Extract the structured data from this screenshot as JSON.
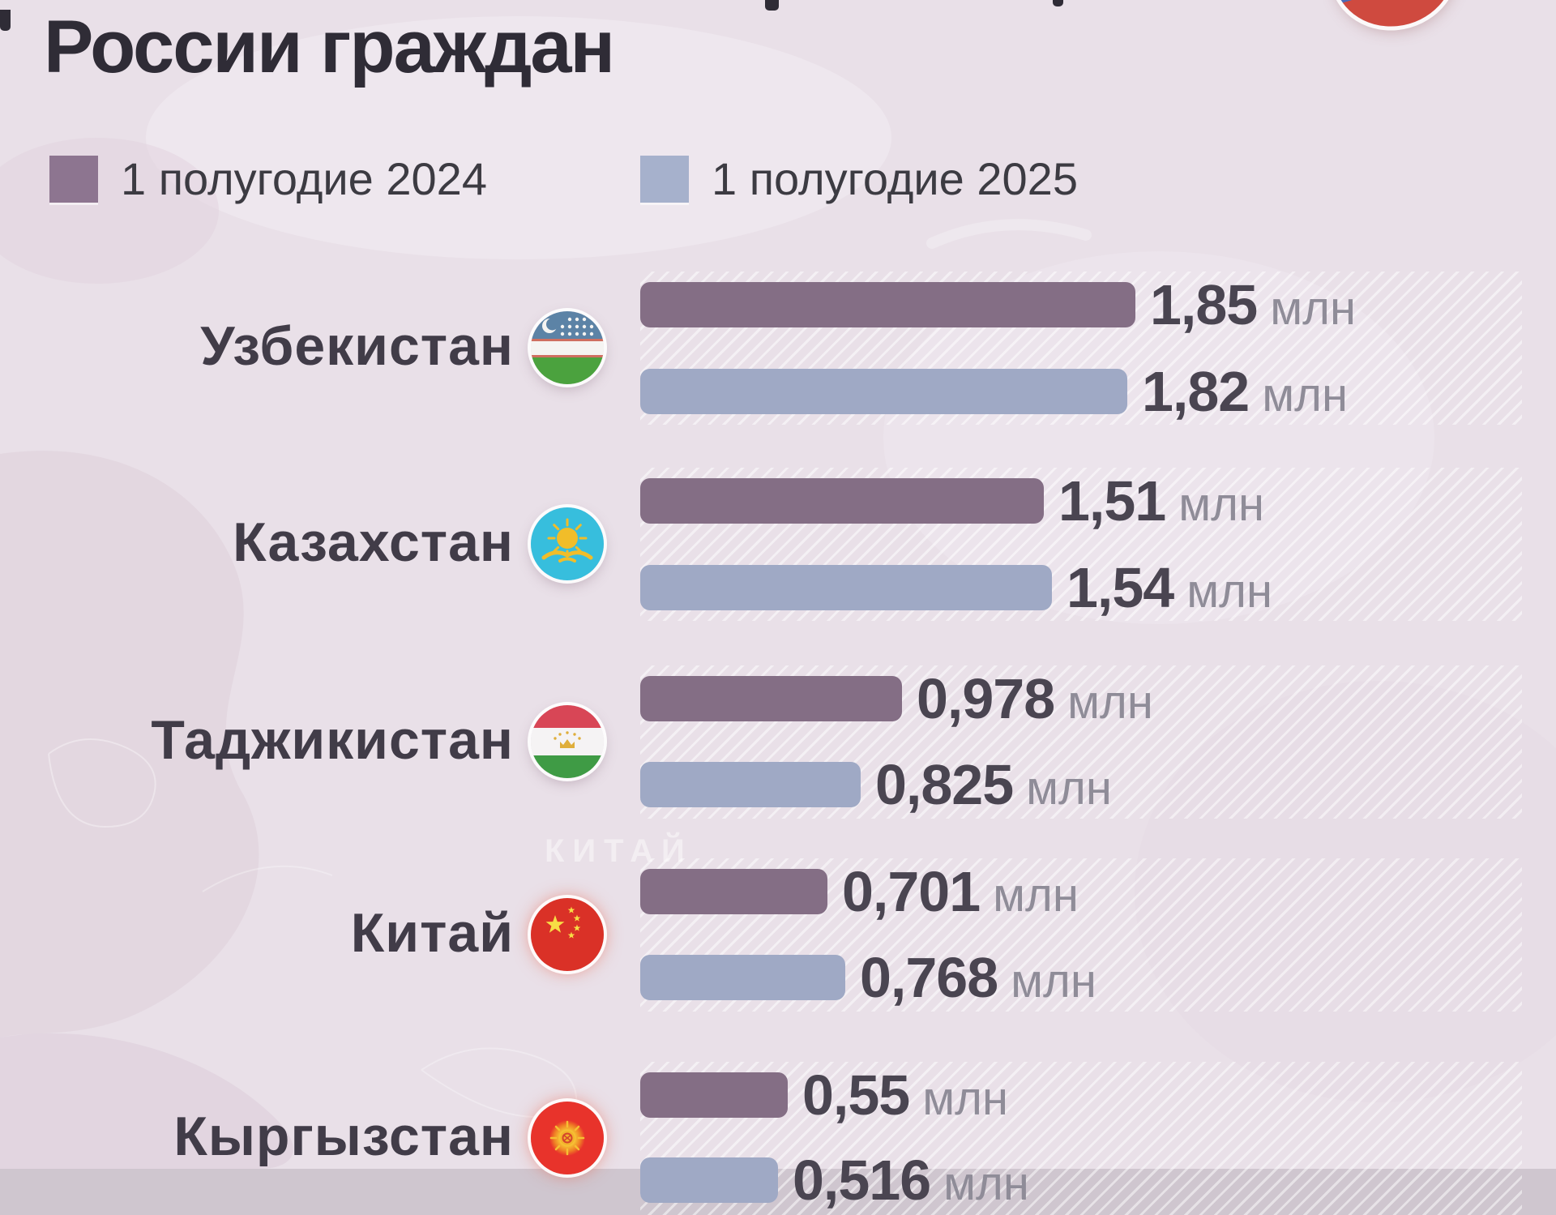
{
  "title": {
    "line_visible": "России граждан"
  },
  "legend": {
    "items": [
      {
        "label": "1 полугодие 2024",
        "color": "#8d7590"
      },
      {
        "label": "1 полугодие 2025",
        "color": "#a6b1cc"
      }
    ]
  },
  "map_label_china": "КИТАЙ",
  "colors": {
    "background": "#e9e0e8",
    "bar_2024": "#846e85",
    "bar_2025": "#9fa9c5",
    "value_number": "#4a4551",
    "value_unit": "#8f8c98",
    "country_label": "#413c48",
    "title": "#2f2c36"
  },
  "chart_data": {
    "type": "bar",
    "orientation": "horizontal",
    "title_visible": "России граждан",
    "unit": "млн",
    "legend_position": "top",
    "grid": false,
    "categories": [
      "Узбекистан",
      "Казахстан",
      "Таджикистан",
      "Китай",
      "Кыргызстан"
    ],
    "series": [
      {
        "name": "1 полугодие 2024",
        "color": "#846e85",
        "values": [
          1.85,
          1.51,
          0.978,
          0.701,
          0.55
        ]
      },
      {
        "name": "1 полугодие 2025",
        "color": "#9fa9c5",
        "values": [
          1.82,
          1.54,
          0.825,
          0.768,
          0.516
        ]
      }
    ],
    "value_labels": {
      "h1_2024": [
        "1,85 млн",
        "1,51 млн",
        "0,978 млн",
        "0,701 млн",
        "0,55 млн"
      ],
      "h1_2025": [
        "1,82 млн",
        "1,54 млн",
        "0,825 млн",
        "0,768 млн",
        "0,516 млн"
      ]
    }
  },
  "rows": [
    {
      "label": "Узбекистан",
      "v2024": 1.85,
      "v2025": 1.82,
      "d2024": "1,85",
      "d2025": "1,82",
      "unit": "млн"
    },
    {
      "label": "Казахстан",
      "v2024": 1.51,
      "v2025": 1.54,
      "d2024": "1,51",
      "d2025": "1,54",
      "unit": "млн"
    },
    {
      "label": "Таджикистан",
      "v2024": 0.978,
      "v2025": 0.825,
      "d2024": "0,978",
      "d2025": "0,825",
      "unit": "млн"
    },
    {
      "label": "Китай",
      "v2024": 0.701,
      "v2025": 0.768,
      "d2024": "0,701",
      "d2025": "0,768",
      "unit": "млн"
    },
    {
      "label": "Кыргызстан",
      "v2024": 0.55,
      "v2025": 0.516,
      "d2024": "0,55",
      "d2025": "0,516",
      "unit": "млн"
    }
  ]
}
